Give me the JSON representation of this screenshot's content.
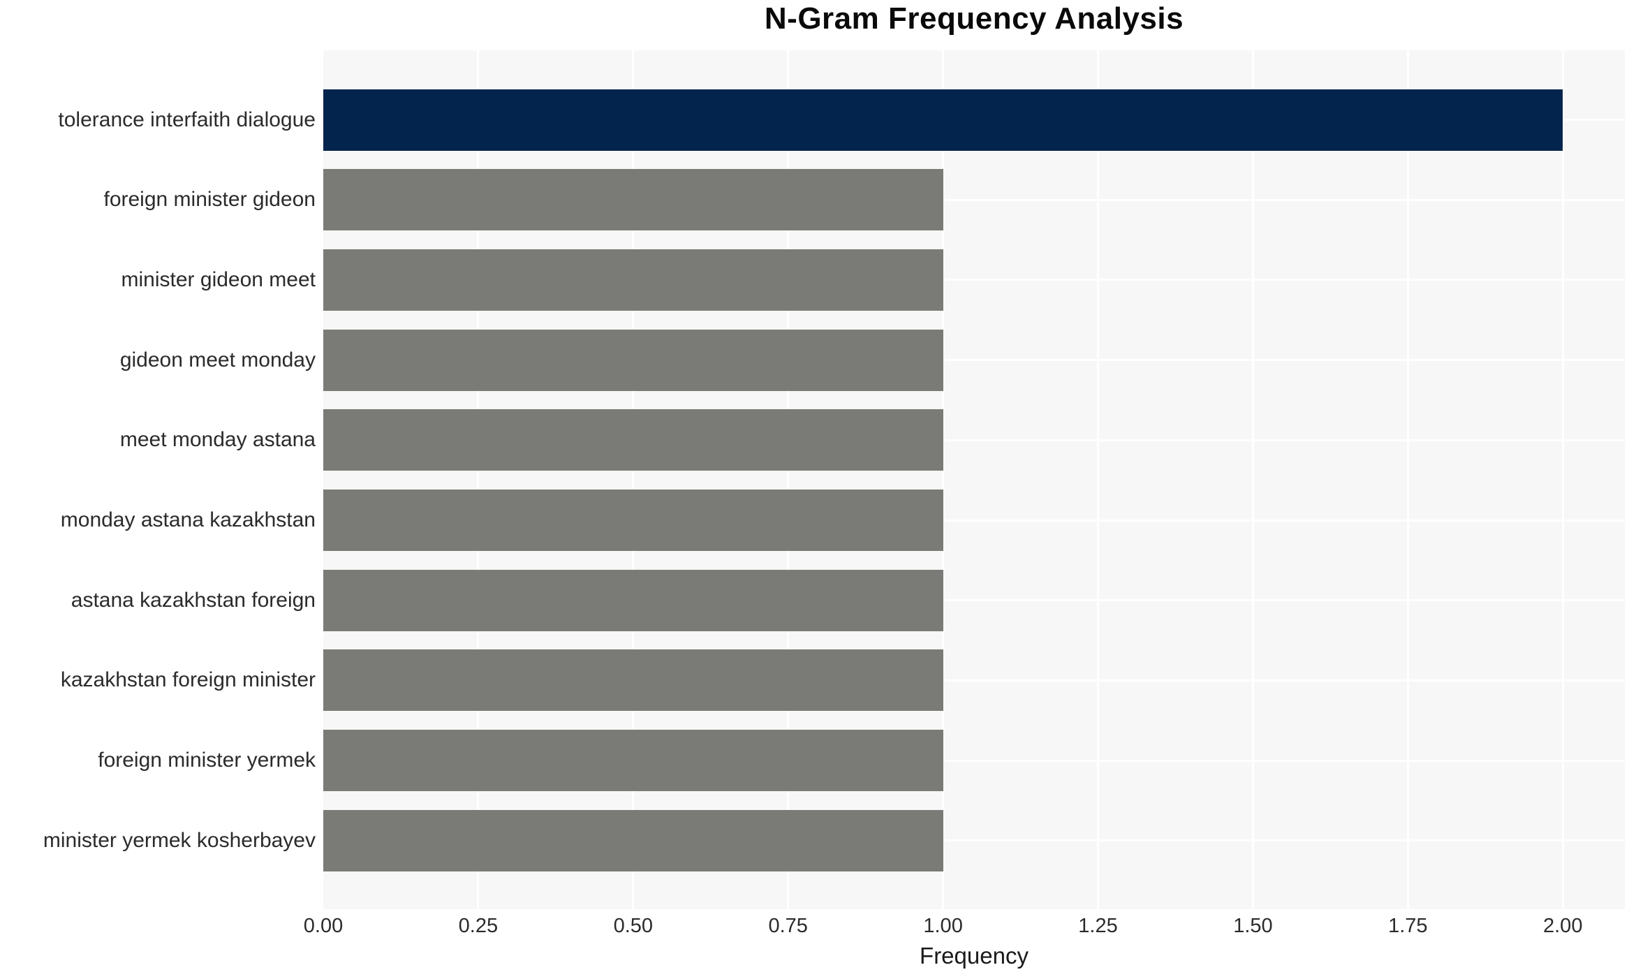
{
  "chart_data": {
    "type": "bar",
    "orientation": "horizontal",
    "title": "N-Gram Frequency Analysis",
    "xlabel": "Frequency",
    "ylabel": "",
    "categories": [
      "tolerance interfaith dialogue",
      "foreign minister gideon",
      "minister gideon meet",
      "gideon meet monday",
      "meet monday astana",
      "monday astana kazakhstan",
      "astana kazakhstan foreign",
      "kazakhstan foreign minister",
      "foreign minister yermek",
      "minister yermek kosherbayev"
    ],
    "values": [
      2,
      1,
      1,
      1,
      1,
      1,
      1,
      1,
      1,
      1
    ],
    "bar_colors": [
      "#02244d",
      "#7a7a77",
      "#7a7a77",
      "#7a7a77",
      "#7a7a77",
      "#7a7a77",
      "#7a7a77",
      "#7a7a77",
      "#7a7a77",
      "#7a7a77"
    ],
    "highlight_color": "#02244d",
    "default_bar_color": "#7a7a77",
    "xlim": [
      0,
      2.1
    ],
    "xticks": [
      0,
      0.25,
      0.5,
      0.75,
      1.0,
      1.25,
      1.5,
      1.75,
      2.0
    ],
    "xtick_labels": [
      "0.00",
      "0.25",
      "0.50",
      "0.75",
      "1.00",
      "1.25",
      "1.50",
      "1.75",
      "2.00"
    ],
    "grid": true,
    "grid_color": "#ffffff",
    "plot_background": "#f7f7f7",
    "figure_background": "#ffffff",
    "legend_position": "none"
  }
}
